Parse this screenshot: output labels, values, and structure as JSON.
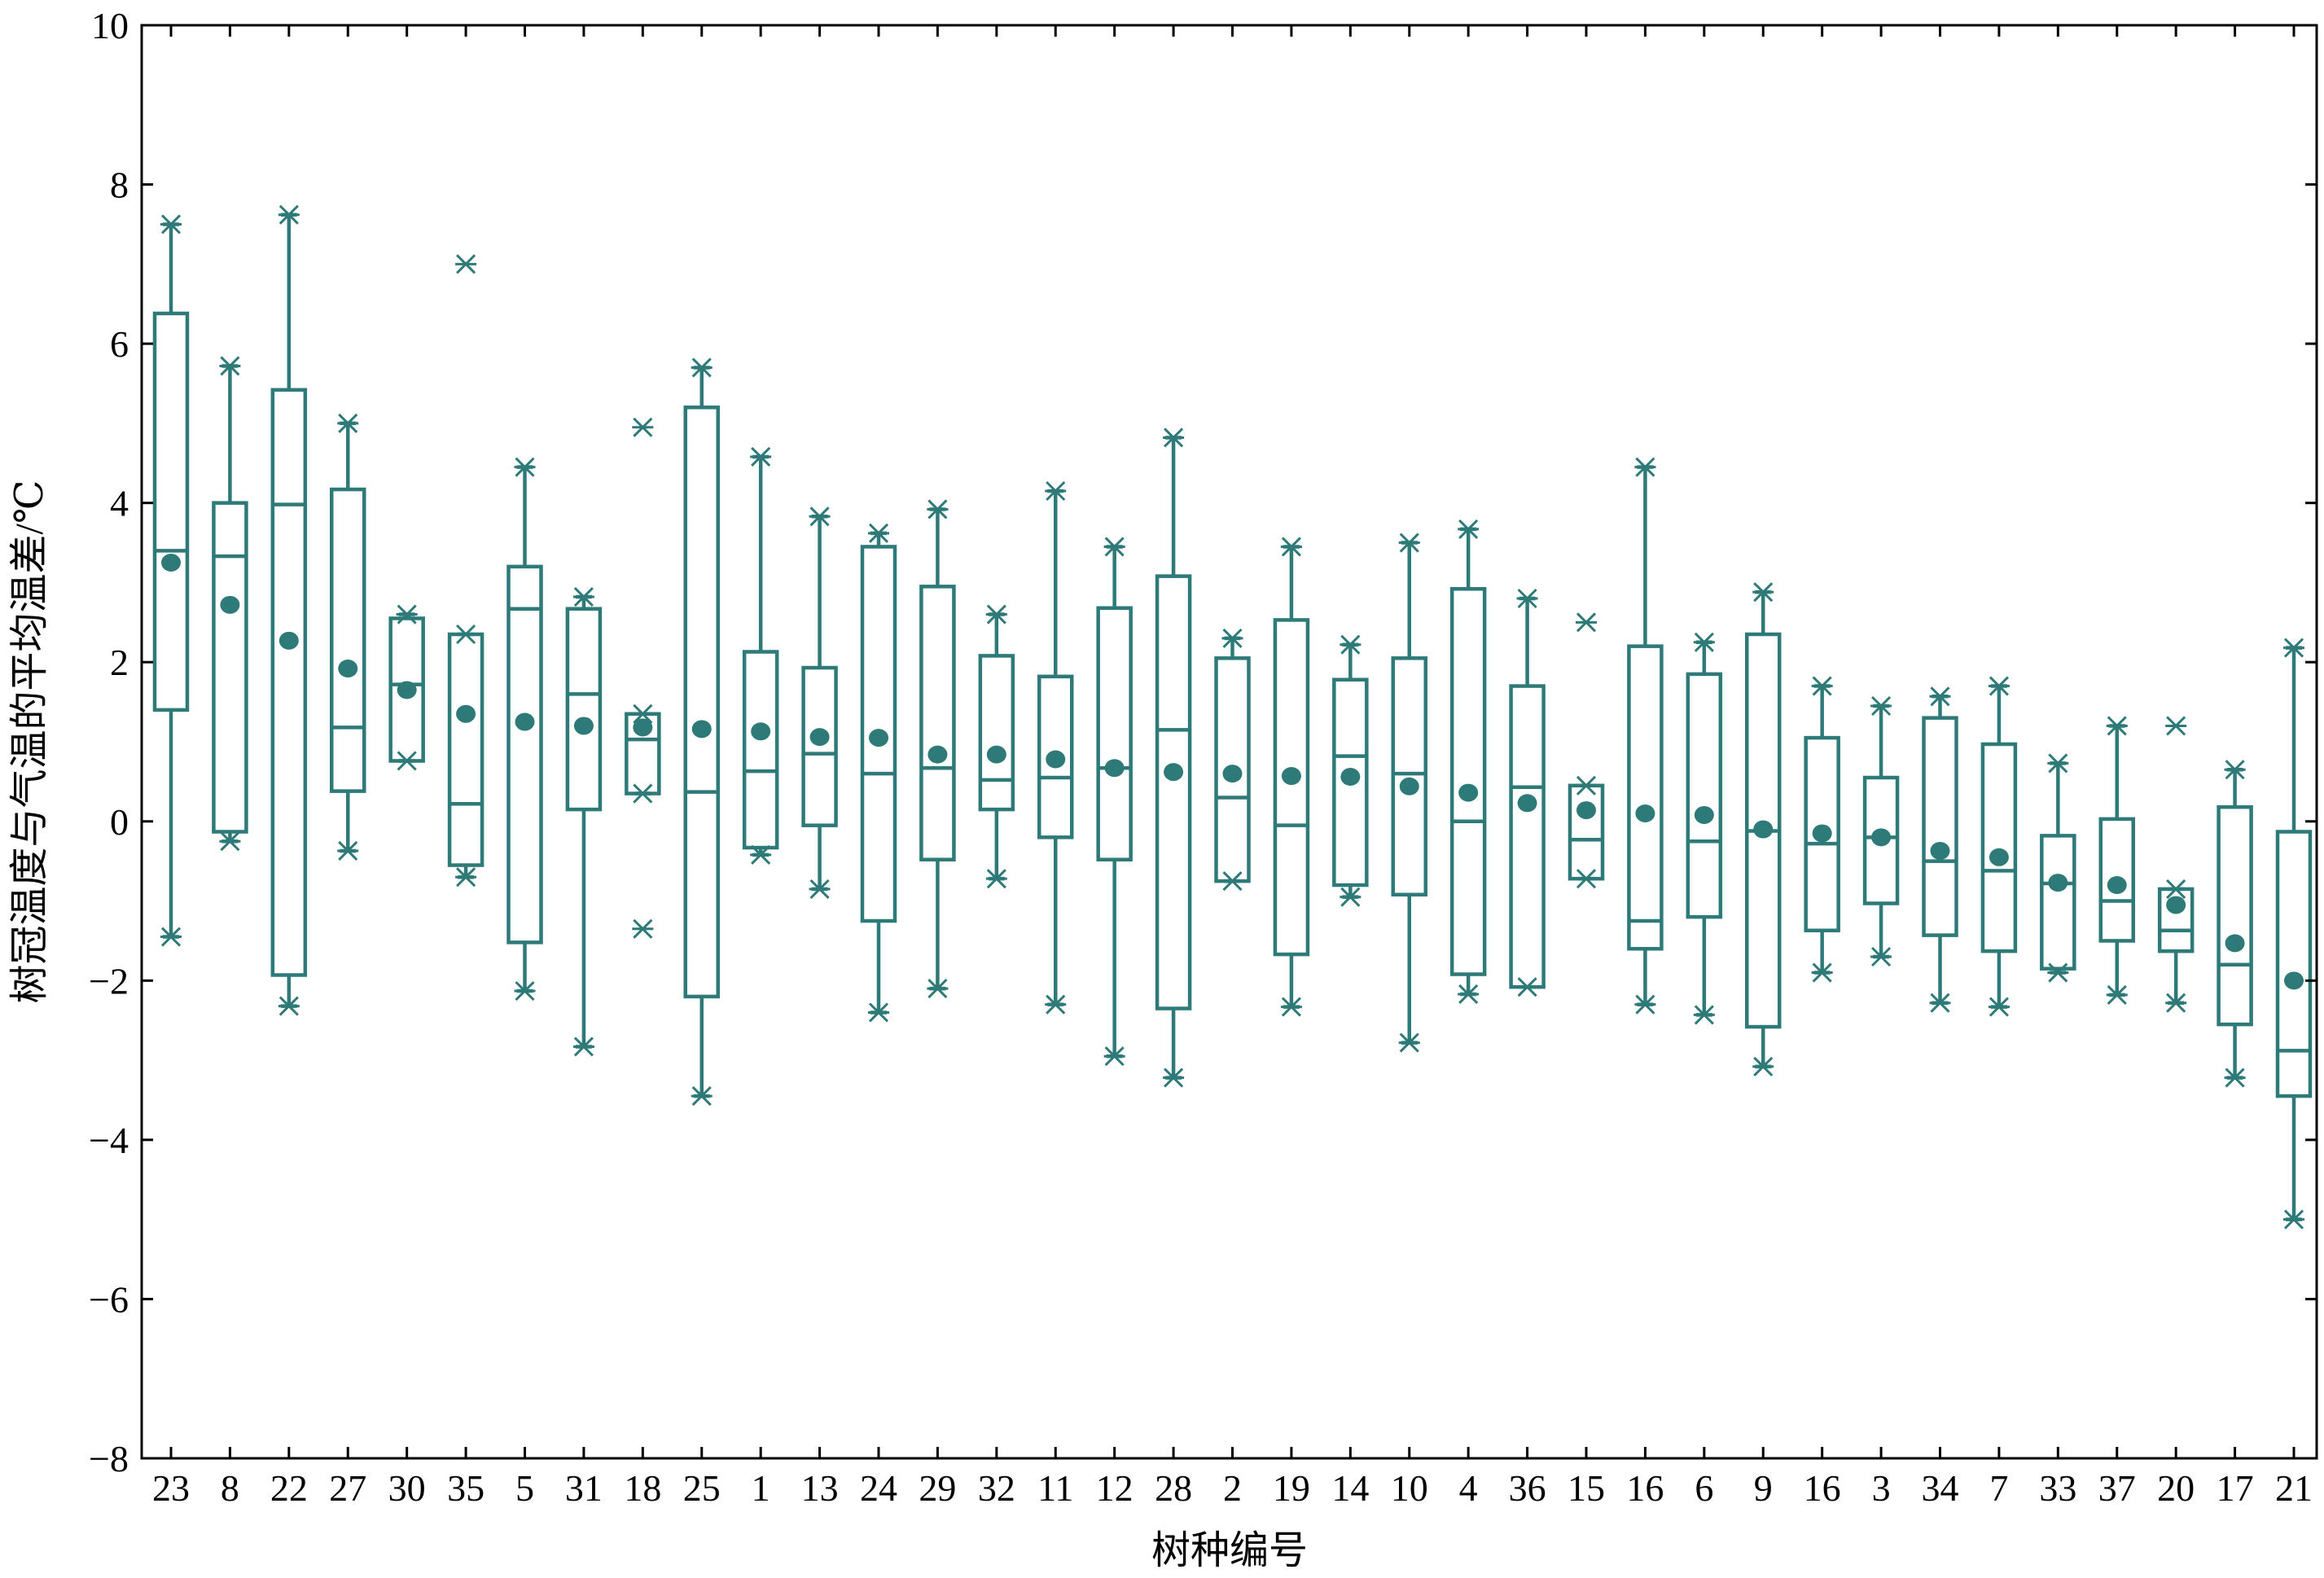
{
  "chart_data": {
    "type": "box",
    "xlabel": "树种编号",
    "ylabel": "树冠温度与气温的平均温差/℃",
    "ylim": [
      -8,
      10
    ],
    "yticks": [
      "10",
      "8",
      "6",
      "4",
      "2",
      "0",
      "−2",
      "−4",
      "−6",
      "−8"
    ],
    "ytick_values": [
      10,
      8,
      6,
      4,
      2,
      0,
      -2,
      -4,
      -6,
      -8
    ],
    "grid": false,
    "color": "#2e7a78",
    "categories": [
      "23",
      "8",
      "22",
      "27",
      "30",
      "35",
      "5",
      "31",
      "18",
      "25",
      "1",
      "13",
      "24",
      "29",
      "32",
      "11",
      "12",
      "28",
      "2",
      "19",
      "14",
      "10",
      "4",
      "36",
      "15",
      "16",
      "6",
      "9",
      "16",
      "3",
      "34",
      "7",
      "33",
      "37",
      "20",
      "17",
      "21"
    ],
    "boxes": [
      {
        "label": "23",
        "q1": 1.4,
        "median": 3.4,
        "q3": 6.38,
        "whisker_low": -1.45,
        "whisker_high": 7.5,
        "mean": 3.25,
        "outliers": []
      },
      {
        "label": "8",
        "q1": -0.13,
        "median": 3.33,
        "q3": 4.0,
        "whisker_low": -0.25,
        "whisker_high": 5.72,
        "mean": 2.72,
        "outliers": []
      },
      {
        "label": "22",
        "q1": -1.93,
        "median": 3.98,
        "q3": 5.42,
        "whisker_low": -2.32,
        "whisker_high": 7.62,
        "mean": 2.27,
        "outliers": []
      },
      {
        "label": "27",
        "q1": 0.38,
        "median": 1.18,
        "q3": 4.17,
        "whisker_low": -0.37,
        "whisker_high": 5.0,
        "mean": 1.92,
        "outliers": []
      },
      {
        "label": "30",
        "q1": 0.76,
        "median": 1.72,
        "q3": 2.55,
        "whisker_low": 0.76,
        "whisker_high": 2.6,
        "mean": 1.65,
        "outliers": []
      },
      {
        "label": "35",
        "q1": -0.55,
        "median": 0.22,
        "q3": 2.35,
        "whisker_low": -0.7,
        "whisker_high": 2.35,
        "mean": 1.35,
        "outliers": [
          7.0
        ]
      },
      {
        "label": "5",
        "q1": -1.52,
        "median": 2.67,
        "q3": 3.2,
        "whisker_low": -2.13,
        "whisker_high": 4.45,
        "mean": 1.25,
        "outliers": []
      },
      {
        "label": "31",
        "q1": 0.15,
        "median": 1.6,
        "q3": 2.67,
        "whisker_low": -2.83,
        "whisker_high": 2.82,
        "mean": 1.2,
        "outliers": []
      },
      {
        "label": "18",
        "q1": 0.35,
        "median": 1.03,
        "q3": 1.35,
        "whisker_low": 0.35,
        "whisker_high": 1.35,
        "mean": 1.18,
        "outliers": [
          4.95,
          -1.35
        ]
      },
      {
        "label": "25",
        "q1": -2.2,
        "median": 0.37,
        "q3": 5.2,
        "whisker_low": -3.45,
        "whisker_high": 5.7,
        "mean": 1.16,
        "outliers": []
      },
      {
        "label": "1",
        "q1": -0.33,
        "median": 0.63,
        "q3": 2.13,
        "whisker_low": -0.42,
        "whisker_high": 4.58,
        "mean": 1.13,
        "outliers": []
      },
      {
        "label": "13",
        "q1": -0.05,
        "median": 0.85,
        "q3": 1.93,
        "whisker_low": -0.85,
        "whisker_high": 3.83,
        "mean": 1.06,
        "outliers": []
      },
      {
        "label": "24",
        "q1": -1.25,
        "median": 0.6,
        "q3": 3.45,
        "whisker_low": -2.4,
        "whisker_high": 3.62,
        "mean": 1.05,
        "outliers": []
      },
      {
        "label": "29",
        "q1": -0.48,
        "median": 0.67,
        "q3": 2.95,
        "whisker_low": -2.1,
        "whisker_high": 3.92,
        "mean": 0.84,
        "outliers": []
      },
      {
        "label": "32",
        "q1": 0.15,
        "median": 0.52,
        "q3": 2.08,
        "whisker_low": -0.72,
        "whisker_high": 2.6,
        "mean": 0.84,
        "outliers": []
      },
      {
        "label": "11",
        "q1": -0.2,
        "median": 0.55,
        "q3": 1.82,
        "whisker_low": -2.3,
        "whisker_high": 4.15,
        "mean": 0.78,
        "outliers": []
      },
      {
        "label": "12",
        "q1": -0.48,
        "median": 0.67,
        "q3": 2.68,
        "whisker_low": -2.95,
        "whisker_high": 3.45,
        "mean": 0.67,
        "outliers": []
      },
      {
        "label": "28",
        "q1": -2.35,
        "median": 1.15,
        "q3": 3.08,
        "whisker_low": -3.22,
        "whisker_high": 4.82,
        "mean": 0.62,
        "outliers": []
      },
      {
        "label": "2",
        "q1": -0.75,
        "median": 0.3,
        "q3": 2.05,
        "whisker_low": -0.75,
        "whisker_high": 2.3,
        "mean": 0.6,
        "outliers": []
      },
      {
        "label": "19",
        "q1": -1.67,
        "median": -0.05,
        "q3": 2.53,
        "whisker_low": -2.33,
        "whisker_high": 3.45,
        "mean": 0.57,
        "outliers": []
      },
      {
        "label": "14",
        "q1": -0.8,
        "median": 0.82,
        "q3": 1.78,
        "whisker_low": -0.95,
        "whisker_high": 2.22,
        "mean": 0.56,
        "outliers": []
      },
      {
        "label": "10",
        "q1": -0.92,
        "median": 0.6,
        "q3": 2.05,
        "whisker_low": -2.78,
        "whisker_high": 3.5,
        "mean": 0.44,
        "outliers": []
      },
      {
        "label": "4",
        "q1": -1.92,
        "median": 0.0,
        "q3": 2.92,
        "whisker_low": -2.17,
        "whisker_high": 3.67,
        "mean": 0.36,
        "outliers": []
      },
      {
        "label": "36",
        "q1": -2.08,
        "median": 0.43,
        "q3": 1.7,
        "whisker_low": -2.08,
        "whisker_high": 2.8,
        "mean": 0.23,
        "outliers": []
      },
      {
        "label": "15",
        "q1": -0.72,
        "median": -0.23,
        "q3": 0.45,
        "whisker_low": -0.72,
        "whisker_high": 0.45,
        "mean": 0.14,
        "outliers": [
          2.5
        ]
      },
      {
        "label": "16",
        "q1": -1.6,
        "median": -1.25,
        "q3": 2.2,
        "whisker_low": -2.3,
        "whisker_high": 4.45,
        "mean": 0.1,
        "outliers": []
      },
      {
        "label": "6",
        "q1": -1.2,
        "median": -0.25,
        "q3": 1.85,
        "whisker_low": -2.43,
        "whisker_high": 2.25,
        "mean": 0.08,
        "outliers": []
      },
      {
        "label": "9",
        "q1": -2.58,
        "median": -0.12,
        "q3": 2.35,
        "whisker_low": -3.08,
        "whisker_high": 2.88,
        "mean": -0.1,
        "outliers": []
      },
      {
        "label": "16",
        "q1": -1.37,
        "median": -0.28,
        "q3": 1.05,
        "whisker_low": -1.9,
        "whisker_high": 1.7,
        "mean": -0.15,
        "outliers": []
      },
      {
        "label": "3",
        "q1": -1.03,
        "median": -0.2,
        "q3": 0.55,
        "whisker_low": -1.7,
        "whisker_high": 1.45,
        "mean": -0.2,
        "outliers": []
      },
      {
        "label": "34",
        "q1": -1.43,
        "median": -0.5,
        "q3": 1.3,
        "whisker_low": -2.28,
        "whisker_high": 1.57,
        "mean": -0.37,
        "outliers": []
      },
      {
        "label": "7",
        "q1": -1.63,
        "median": -0.62,
        "q3": 0.97,
        "whisker_low": -2.33,
        "whisker_high": 1.7,
        "mean": -0.45,
        "outliers": []
      },
      {
        "label": "33",
        "q1": -1.85,
        "median": -0.78,
        "q3": -0.18,
        "whisker_low": -1.9,
        "whisker_high": 0.73,
        "mean": -0.77,
        "outliers": []
      },
      {
        "label": "37",
        "q1": -1.5,
        "median": -1.0,
        "q3": 0.03,
        "whisker_low": -2.18,
        "whisker_high": 1.2,
        "mean": -0.8,
        "outliers": []
      },
      {
        "label": "20",
        "q1": -1.63,
        "median": -1.37,
        "q3": -0.85,
        "whisker_low": -2.28,
        "whisker_high": -0.85,
        "mean": -1.05,
        "outliers": [
          1.2
        ]
      },
      {
        "label": "17",
        "q1": -2.55,
        "median": -1.8,
        "q3": 0.18,
        "whisker_low": -3.22,
        "whisker_high": 0.65,
        "mean": -1.53,
        "outliers": []
      },
      {
        "label": "21",
        "q1": -3.45,
        "median": -2.88,
        "q3": -0.13,
        "whisker_low": -5.0,
        "whisker_high": 2.18,
        "mean": -2.0,
        "outliers": []
      }
    ]
  }
}
